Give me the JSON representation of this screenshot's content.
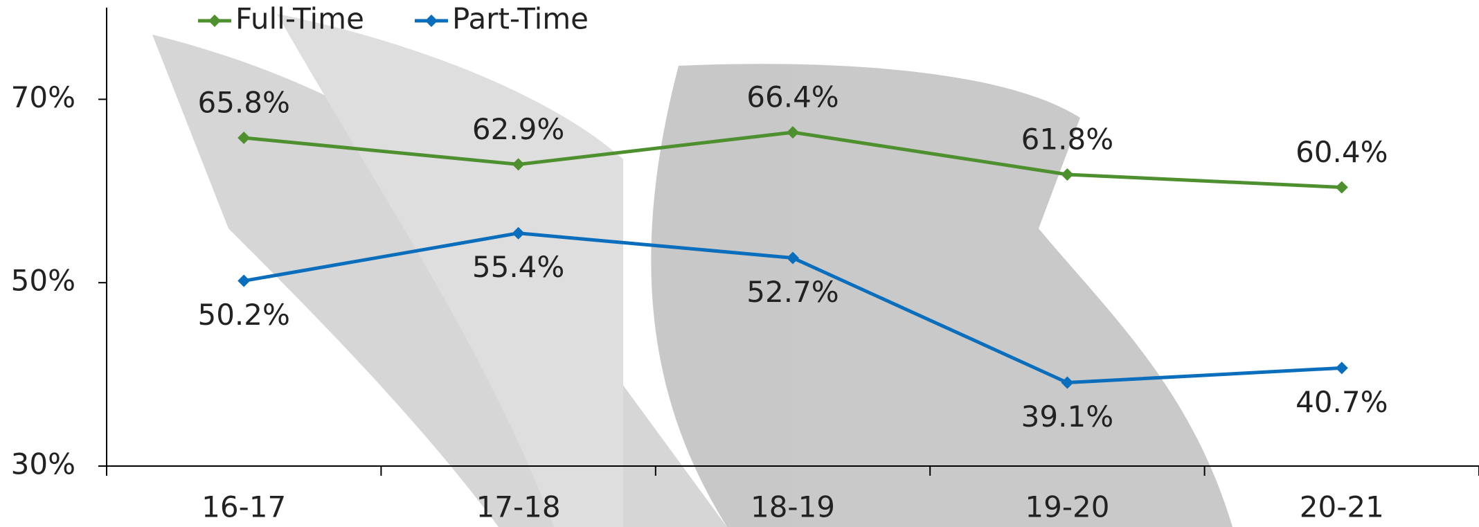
{
  "chart_data": {
    "type": "line",
    "categories": [
      "16-17",
      "17-18",
      "18-19",
      "19-20",
      "20-21"
    ],
    "series": [
      {
        "name": "Full-Time",
        "color": "#4e8f2f",
        "values": [
          65.8,
          62.9,
          66.4,
          61.8,
          60.4
        ],
        "value_labels": [
          "65.8%",
          "62.9%",
          "66.4%",
          "61.8%",
          "60.4%"
        ]
      },
      {
        "name": "Part-Time",
        "color": "#0a6ebd",
        "values": [
          50.2,
          55.4,
          52.7,
          39.1,
          40.7
        ],
        "value_labels": [
          "50.2%",
          "55.4%",
          "52.7%",
          "39.1%",
          "40.7%"
        ]
      }
    ],
    "ylim": [
      30,
      80
    ],
    "yticks": [
      {
        "value": 30,
        "label": "30%"
      },
      {
        "value": 50,
        "label": "50%"
      },
      {
        "value": 70,
        "label": "70%"
      }
    ],
    "legend": "top-left"
  }
}
